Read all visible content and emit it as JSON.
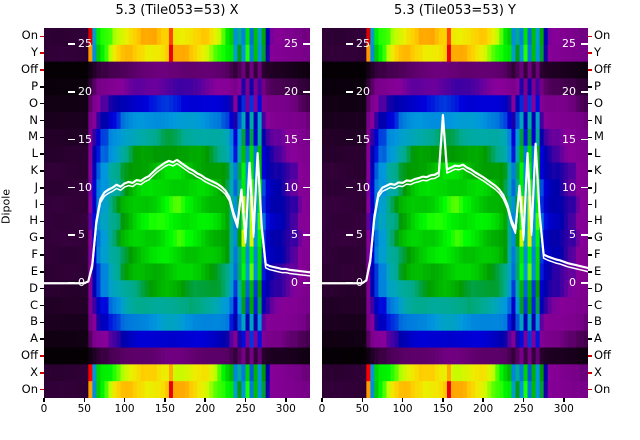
{
  "chart_data": {
    "type": "heatmap",
    "ylabel": "Dipole",
    "x_range": [
      0,
      330
    ],
    "x_ticks": [
      0,
      50,
      100,
      150,
      200,
      250,
      300
    ],
    "y_line_ticks": [
      25,
      20,
      15,
      10,
      5,
      0
    ],
    "line_axis_range": [
      -12,
      26.7
    ],
    "line_color": "#ffffff",
    "tick_color_special": "#cc0000",
    "tick_color_normal": "#000000",
    "row_labels": [
      "On",
      "Y",
      "Off",
      "P",
      "O",
      "N",
      "M",
      "L",
      "K",
      "J",
      "I",
      "H",
      "G",
      "F",
      "E",
      "D",
      "C",
      "B",
      "A",
      "Off",
      "X",
      "On"
    ],
    "row_kinds": [
      "bright",
      "bright",
      "off",
      "mid",
      "mid",
      "mid",
      "mid",
      "mid",
      "mid",
      "mid",
      "mid",
      "mid",
      "mid",
      "mid",
      "mid",
      "mid",
      "mid",
      "mid",
      "mid",
      "off",
      "bright",
      "bright"
    ],
    "row_gains": [
      1.0,
      1.0,
      0,
      0.22,
      0.38,
      0.55,
      0.72,
      0.85,
      0.95,
      1.0,
      1.05,
      1.08,
      1.05,
      1.0,
      0.95,
      0.85,
      0.72,
      0.55,
      0.35,
      0,
      0.95,
      1.0
    ],
    "colormap_stops": [
      [
        0.0,
        "#000000"
      ],
      [
        0.05,
        "#770088"
      ],
      [
        0.1,
        "#880099"
      ],
      [
        0.15,
        "#0000aa"
      ],
      [
        0.2,
        "#0000dd"
      ],
      [
        0.25,
        "#0077dd"
      ],
      [
        0.3,
        "#0099dd"
      ],
      [
        0.35,
        "#00aaaa"
      ],
      [
        0.4,
        "#00aa88"
      ],
      [
        0.45,
        "#009900"
      ],
      [
        0.5,
        "#00bb00"
      ],
      [
        0.55,
        "#00dd00"
      ],
      [
        0.6,
        "#00ff00"
      ],
      [
        0.65,
        "#bbff00"
      ],
      [
        0.7,
        "#eeee00"
      ],
      [
        0.75,
        "#ffcc00"
      ],
      [
        0.8,
        "#ff9900"
      ],
      [
        0.85,
        "#ff0000"
      ],
      [
        0.9,
        "#dd0000"
      ],
      [
        0.95,
        "#cc0000"
      ],
      [
        1.0,
        "#cccccc"
      ]
    ],
    "profiles": {
      "x_bin_size": 5,
      "off_factor": 0.08,
      "mid": [
        0.02,
        0.02,
        0.02,
        0.02,
        0.02,
        0.02,
        0.02,
        0.02,
        0.02,
        0.02,
        0.02,
        0.1,
        0.18,
        0.25,
        0.3,
        0.3,
        0.36,
        0.38,
        0.4,
        0.44,
        0.46,
        0.48,
        0.5,
        0.51,
        0.52,
        0.52,
        0.53,
        0.53,
        0.54,
        0.55,
        0.56,
        0.56,
        0.56,
        0.56,
        0.55,
        0.54,
        0.54,
        0.53,
        0.53,
        0.52,
        0.51,
        0.5,
        0.49,
        0.48,
        0.46,
        0.44,
        0.36,
        0.26,
        0.42,
        0.6,
        0.3,
        0.62,
        0.28,
        0.56,
        0.22,
        0.18,
        0.16,
        0.15,
        0.15,
        0.14,
        0.13,
        0.12,
        0.12,
        0.1,
        0.09,
        0.08
      ],
      "bright": [
        0.02,
        0.02,
        0.02,
        0.02,
        0.02,
        0.02,
        0.02,
        0.02,
        0.02,
        0.02,
        0.02,
        0.85,
        0.3,
        0.55,
        0.6,
        0.62,
        0.64,
        0.68,
        0.7,
        0.72,
        0.73,
        0.74,
        0.74,
        0.74,
        0.75,
        0.74,
        0.74,
        0.75,
        0.74,
        0.74,
        0.75,
        0.86,
        0.75,
        0.74,
        0.74,
        0.74,
        0.73,
        0.73,
        0.72,
        0.72,
        0.71,
        0.68,
        0.66,
        0.64,
        0.62,
        0.58,
        0.55,
        0.3,
        0.42,
        0.28,
        0.58,
        0.25,
        0.5,
        0.3,
        0.45,
        0.15,
        0.1,
        0.09,
        0.09,
        0.08,
        0.07,
        0.07,
        0.06,
        0.06,
        0.05,
        0.05
      ]
    },
    "panels": [
      {
        "id": "X",
        "title": "5.3 (Tile053=53) X",
        "line_x_step": 5,
        "line_y": [
          0,
          0,
          0,
          0,
          0,
          0,
          0,
          0,
          0,
          0,
          0,
          0.2,
          2.0,
          6.5,
          8.8,
          9.5,
          9.8,
          10.0,
          10.3,
          10.1,
          10.45,
          10.6,
          10.5,
          10.8,
          10.7,
          11.0,
          11.2,
          11.6,
          12.0,
          12.3,
          12.6,
          12.8,
          12.65,
          12.9,
          12.6,
          12.3,
          12.0,
          11.8,
          11.5,
          11.3,
          11.0,
          10.8,
          10.6,
          10.4,
          10.1,
          9.7,
          9.0,
          7.4,
          6.2,
          9.8,
          4.6,
          12.6,
          5.2,
          13.6,
          6.0,
          2.0,
          1.8,
          1.7,
          1.6,
          1.5,
          1.5,
          1.4,
          1.35,
          1.3,
          1.25,
          1.2,
          1.15
        ]
      },
      {
        "id": "Y",
        "title": "5.3 (Tile053=53) Y",
        "line_x_step": 5,
        "line_y": [
          0,
          0,
          0,
          0,
          0,
          0,
          0,
          0,
          0,
          0,
          0,
          0.3,
          2.5,
          7.0,
          9.4,
          10.0,
          10.2,
          10.4,
          10.3,
          10.55,
          10.5,
          10.75,
          10.7,
          10.9,
          11.0,
          11.15,
          11.1,
          11.3,
          11.35,
          11.6,
          17.6,
          11.9,
          12.1,
          12.3,
          12.25,
          12.4,
          12.1,
          11.9,
          11.6,
          11.35,
          11.1,
          10.8,
          10.5,
          10.2,
          9.8,
          9.2,
          8.2,
          6.6,
          5.6,
          10.2,
          4.9,
          13.6,
          5.4,
          14.6,
          7.2,
          3.0,
          2.8,
          2.65,
          2.5,
          2.4,
          2.25,
          2.1,
          2.0,
          1.9,
          1.8,
          1.7,
          1.6
        ]
      }
    ]
  }
}
